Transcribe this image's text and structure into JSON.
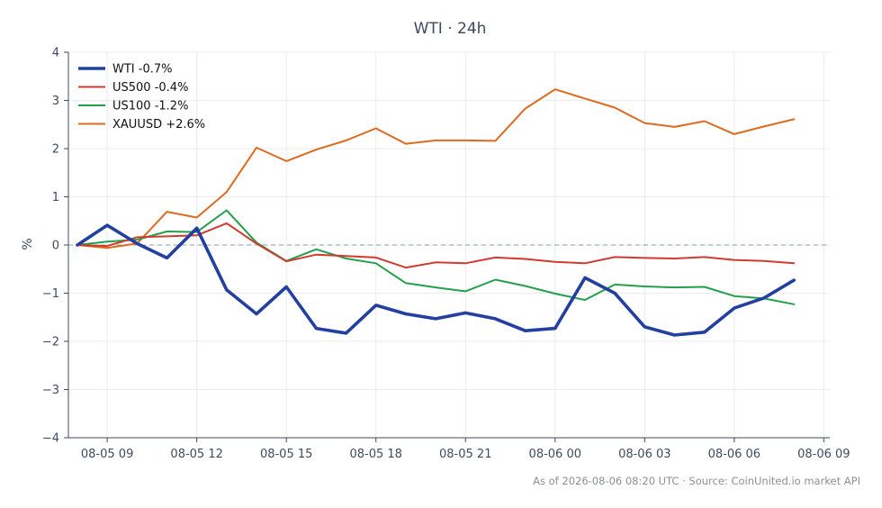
{
  "chart_data": {
    "type": "line",
    "title": "WTI · 24h",
    "xlabel": "",
    "ylabel": "%",
    "ylim": [
      -4,
      4
    ],
    "yticks": [
      4,
      3,
      2,
      1,
      0,
      -1,
      -2,
      -3,
      -4
    ],
    "ytick_labels": [
      "4",
      "3",
      "2",
      "1",
      "0",
      "−1",
      "−2",
      "−3",
      "−4"
    ],
    "xlim": [
      "2026-08-05 07:42",
      "2026-08-06 09:12"
    ],
    "xtick_labels": [
      "08-05 09",
      "08-05 12",
      "08-05 15",
      "08-05 18",
      "08-05 21",
      "08-06 00",
      "08-06 03",
      "08-06 06",
      "08-06 09"
    ],
    "xtick_times": [
      "2026-08-05 09:00",
      "2026-08-05 12:00",
      "2026-08-05 15:00",
      "2026-08-05 18:00",
      "2026-08-05 21:00",
      "2026-08-06 00:00",
      "2026-08-06 03:00",
      "2026-08-06 06:00",
      "2026-08-06 09:00"
    ],
    "x": [
      "2026-08-05 08:00",
      "2026-08-05 09:00",
      "2026-08-05 10:00",
      "2026-08-05 11:00",
      "2026-08-05 12:00",
      "2026-08-05 13:00",
      "2026-08-05 14:00",
      "2026-08-05 15:00",
      "2026-08-05 16:00",
      "2026-08-05 17:00",
      "2026-08-05 18:00",
      "2026-08-05 19:00",
      "2026-08-05 20:00",
      "2026-08-05 21:00",
      "2026-08-05 22:00",
      "2026-08-05 23:00",
      "2026-08-06 00:00",
      "2026-08-06 01:00",
      "2026-08-06 02:00",
      "2026-08-06 03:00",
      "2026-08-06 04:00",
      "2026-08-06 05:00",
      "2026-08-06 06:00",
      "2026-08-06 07:00",
      "2026-08-06 08:00"
    ],
    "grid": true,
    "legend_position": "top-left",
    "reference_line": 0,
    "series": [
      {
        "name": "WTI -0.7%",
        "color": "#2340a0",
        "width": 3.6,
        "values": [
          0.0,
          0.41,
          0.03,
          -0.27,
          0.35,
          -0.93,
          -1.43,
          -0.87,
          -1.73,
          -1.83,
          -1.25,
          -1.43,
          -1.53,
          -1.41,
          -1.53,
          -1.78,
          -1.73,
          -0.68,
          -1.0,
          -1.7,
          -1.87,
          -1.81,
          -1.31,
          -1.1,
          -0.73
        ]
      },
      {
        "name": "US500 -0.4%",
        "color": "#d03a2f",
        "width": 2,
        "values": [
          0.0,
          -0.02,
          0.16,
          0.18,
          0.2,
          0.45,
          0.03,
          -0.34,
          -0.2,
          -0.23,
          -0.26,
          -0.47,
          -0.36,
          -0.38,
          -0.26,
          -0.29,
          -0.35,
          -0.38,
          -0.25,
          -0.27,
          -0.28,
          -0.25,
          -0.31,
          -0.33,
          -0.38
        ]
      },
      {
        "name": "US100 -1.2%",
        "color": "#23a04a",
        "width": 2,
        "values": [
          0.0,
          0.07,
          0.11,
          0.28,
          0.27,
          0.72,
          0.05,
          -0.33,
          -0.09,
          -0.28,
          -0.38,
          -0.79,
          -0.88,
          -0.96,
          -0.72,
          -0.85,
          -1.01,
          -1.14,
          -0.82,
          -0.86,
          -0.88,
          -0.87,
          -1.06,
          -1.11,
          -1.23
        ]
      },
      {
        "name": "XAUUSD +2.6%",
        "color": "#dd6a1f",
        "width": 2,
        "values": [
          0.0,
          -0.06,
          0.03,
          0.69,
          0.57,
          1.1,
          2.02,
          1.74,
          1.98,
          2.17,
          2.42,
          2.1,
          2.17,
          2.17,
          2.16,
          2.83,
          3.23,
          3.04,
          2.85,
          2.53,
          2.45,
          2.57,
          2.3,
          2.46,
          2.61
        ]
      }
    ]
  },
  "footer": "As of 2026-08-06 08:20 UTC · Source: CoinUnited.io market API"
}
